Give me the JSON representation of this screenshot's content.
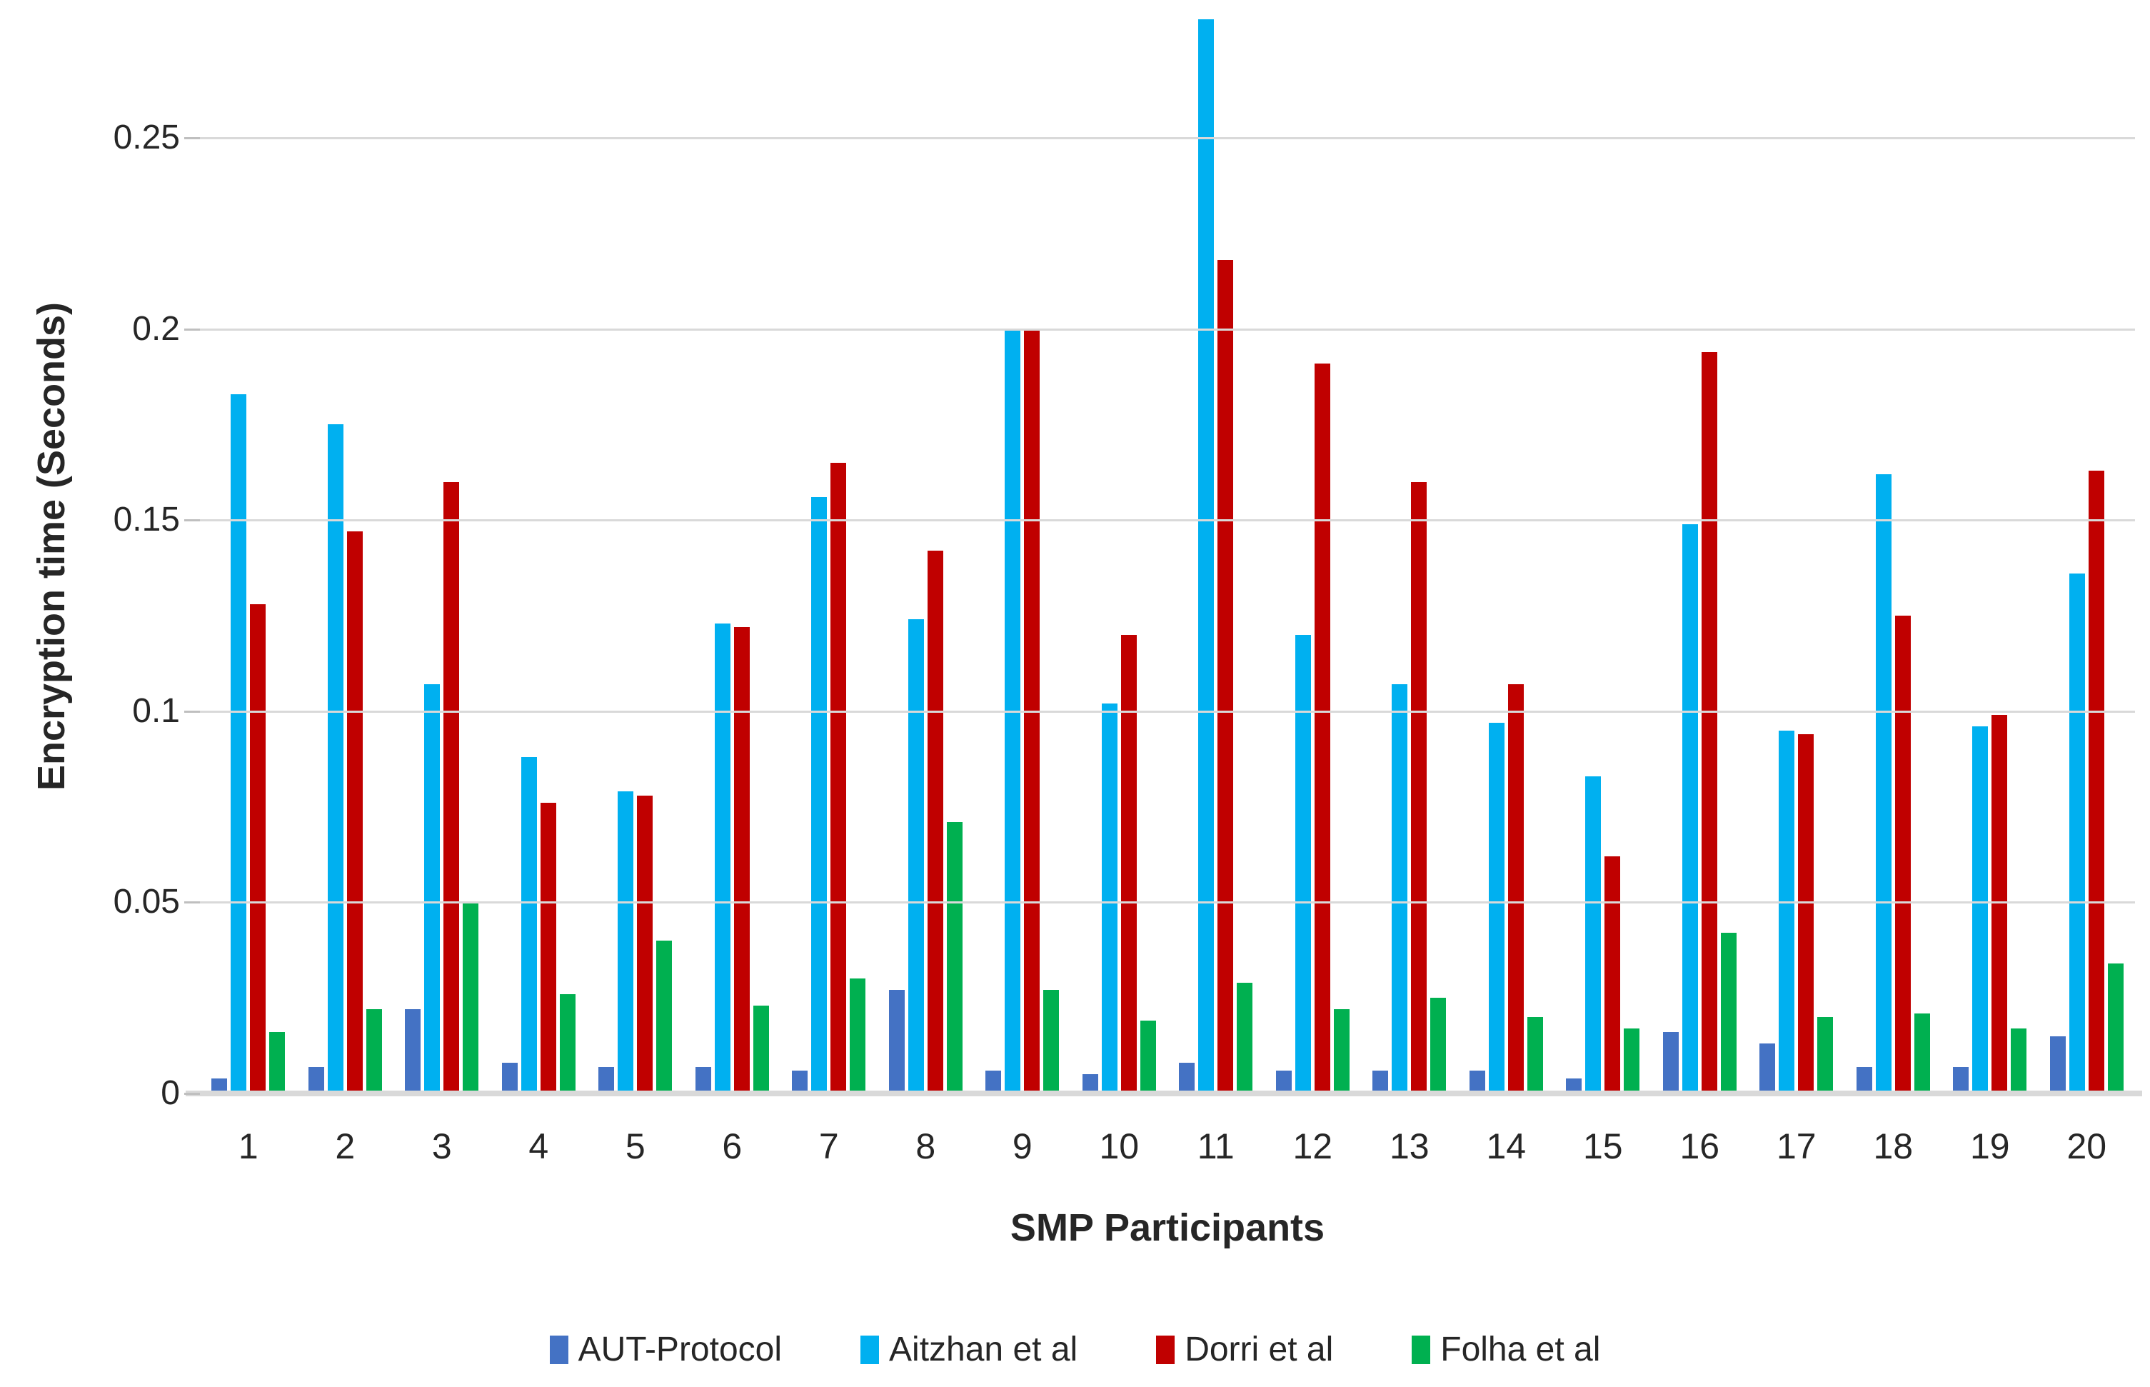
{
  "chart_data": {
    "type": "bar",
    "title": "",
    "xlabel": "SMP Participants",
    "ylabel": "Encryption time (Seconds)",
    "categories": [
      "1",
      "2",
      "3",
      "4",
      "5",
      "6",
      "7",
      "8",
      "9",
      "10",
      "11",
      "12",
      "13",
      "14",
      "15",
      "16",
      "17",
      "18",
      "19",
      "20"
    ],
    "series": [
      {
        "name": "AUT-Protocol",
        "color": "#4472C4",
        "values": [
          0.004,
          0.007,
          0.022,
          0.008,
          0.007,
          0.007,
          0.006,
          0.027,
          0.006,
          0.005,
          0.008,
          0.006,
          0.006,
          0.006,
          0.004,
          0.016,
          0.013,
          0.007,
          0.007,
          0.015
        ]
      },
      {
        "name": "Aitzhan et al",
        "color": "#00B0F0",
        "values": [
          0.183,
          0.175,
          0.107,
          0.088,
          0.079,
          0.123,
          0.156,
          0.124,
          0.2,
          0.102,
          0.281,
          0.12,
          0.107,
          0.097,
          0.083,
          0.149,
          0.095,
          0.162,
          0.096,
          0.136
        ]
      },
      {
        "name": "Dorri et al",
        "color": "#C00000",
        "values": [
          0.128,
          0.147,
          0.16,
          0.076,
          0.078,
          0.122,
          0.165,
          0.142,
          0.2,
          0.12,
          0.218,
          0.191,
          0.16,
          0.107,
          0.062,
          0.194,
          0.094,
          0.125,
          0.099,
          0.163
        ]
      },
      {
        "name": "Folha et al",
        "color": "#00B050",
        "values": [
          0.016,
          0.022,
          0.05,
          0.026,
          0.04,
          0.023,
          0.03,
          0.071,
          0.027,
          0.019,
          0.029,
          0.022,
          0.025,
          0.02,
          0.017,
          0.042,
          0.02,
          0.021,
          0.017,
          0.034
        ]
      }
    ],
    "y_ticks": [
      0,
      0.05,
      0.1,
      0.15,
      0.2,
      0.25
    ],
    "y_tick_labels": [
      "0",
      "0.05",
      "0.1",
      "0.15",
      "0.2",
      "0.25"
    ],
    "ylim": [
      0,
      0.2861
    ],
    "grid": true,
    "legend_position": "bottom"
  },
  "style_colors": {
    "gridline": "#d9d9d9",
    "axis_line": "#d9d9d9",
    "tick_mark": "#bfbfbf",
    "text": "#262626"
  }
}
